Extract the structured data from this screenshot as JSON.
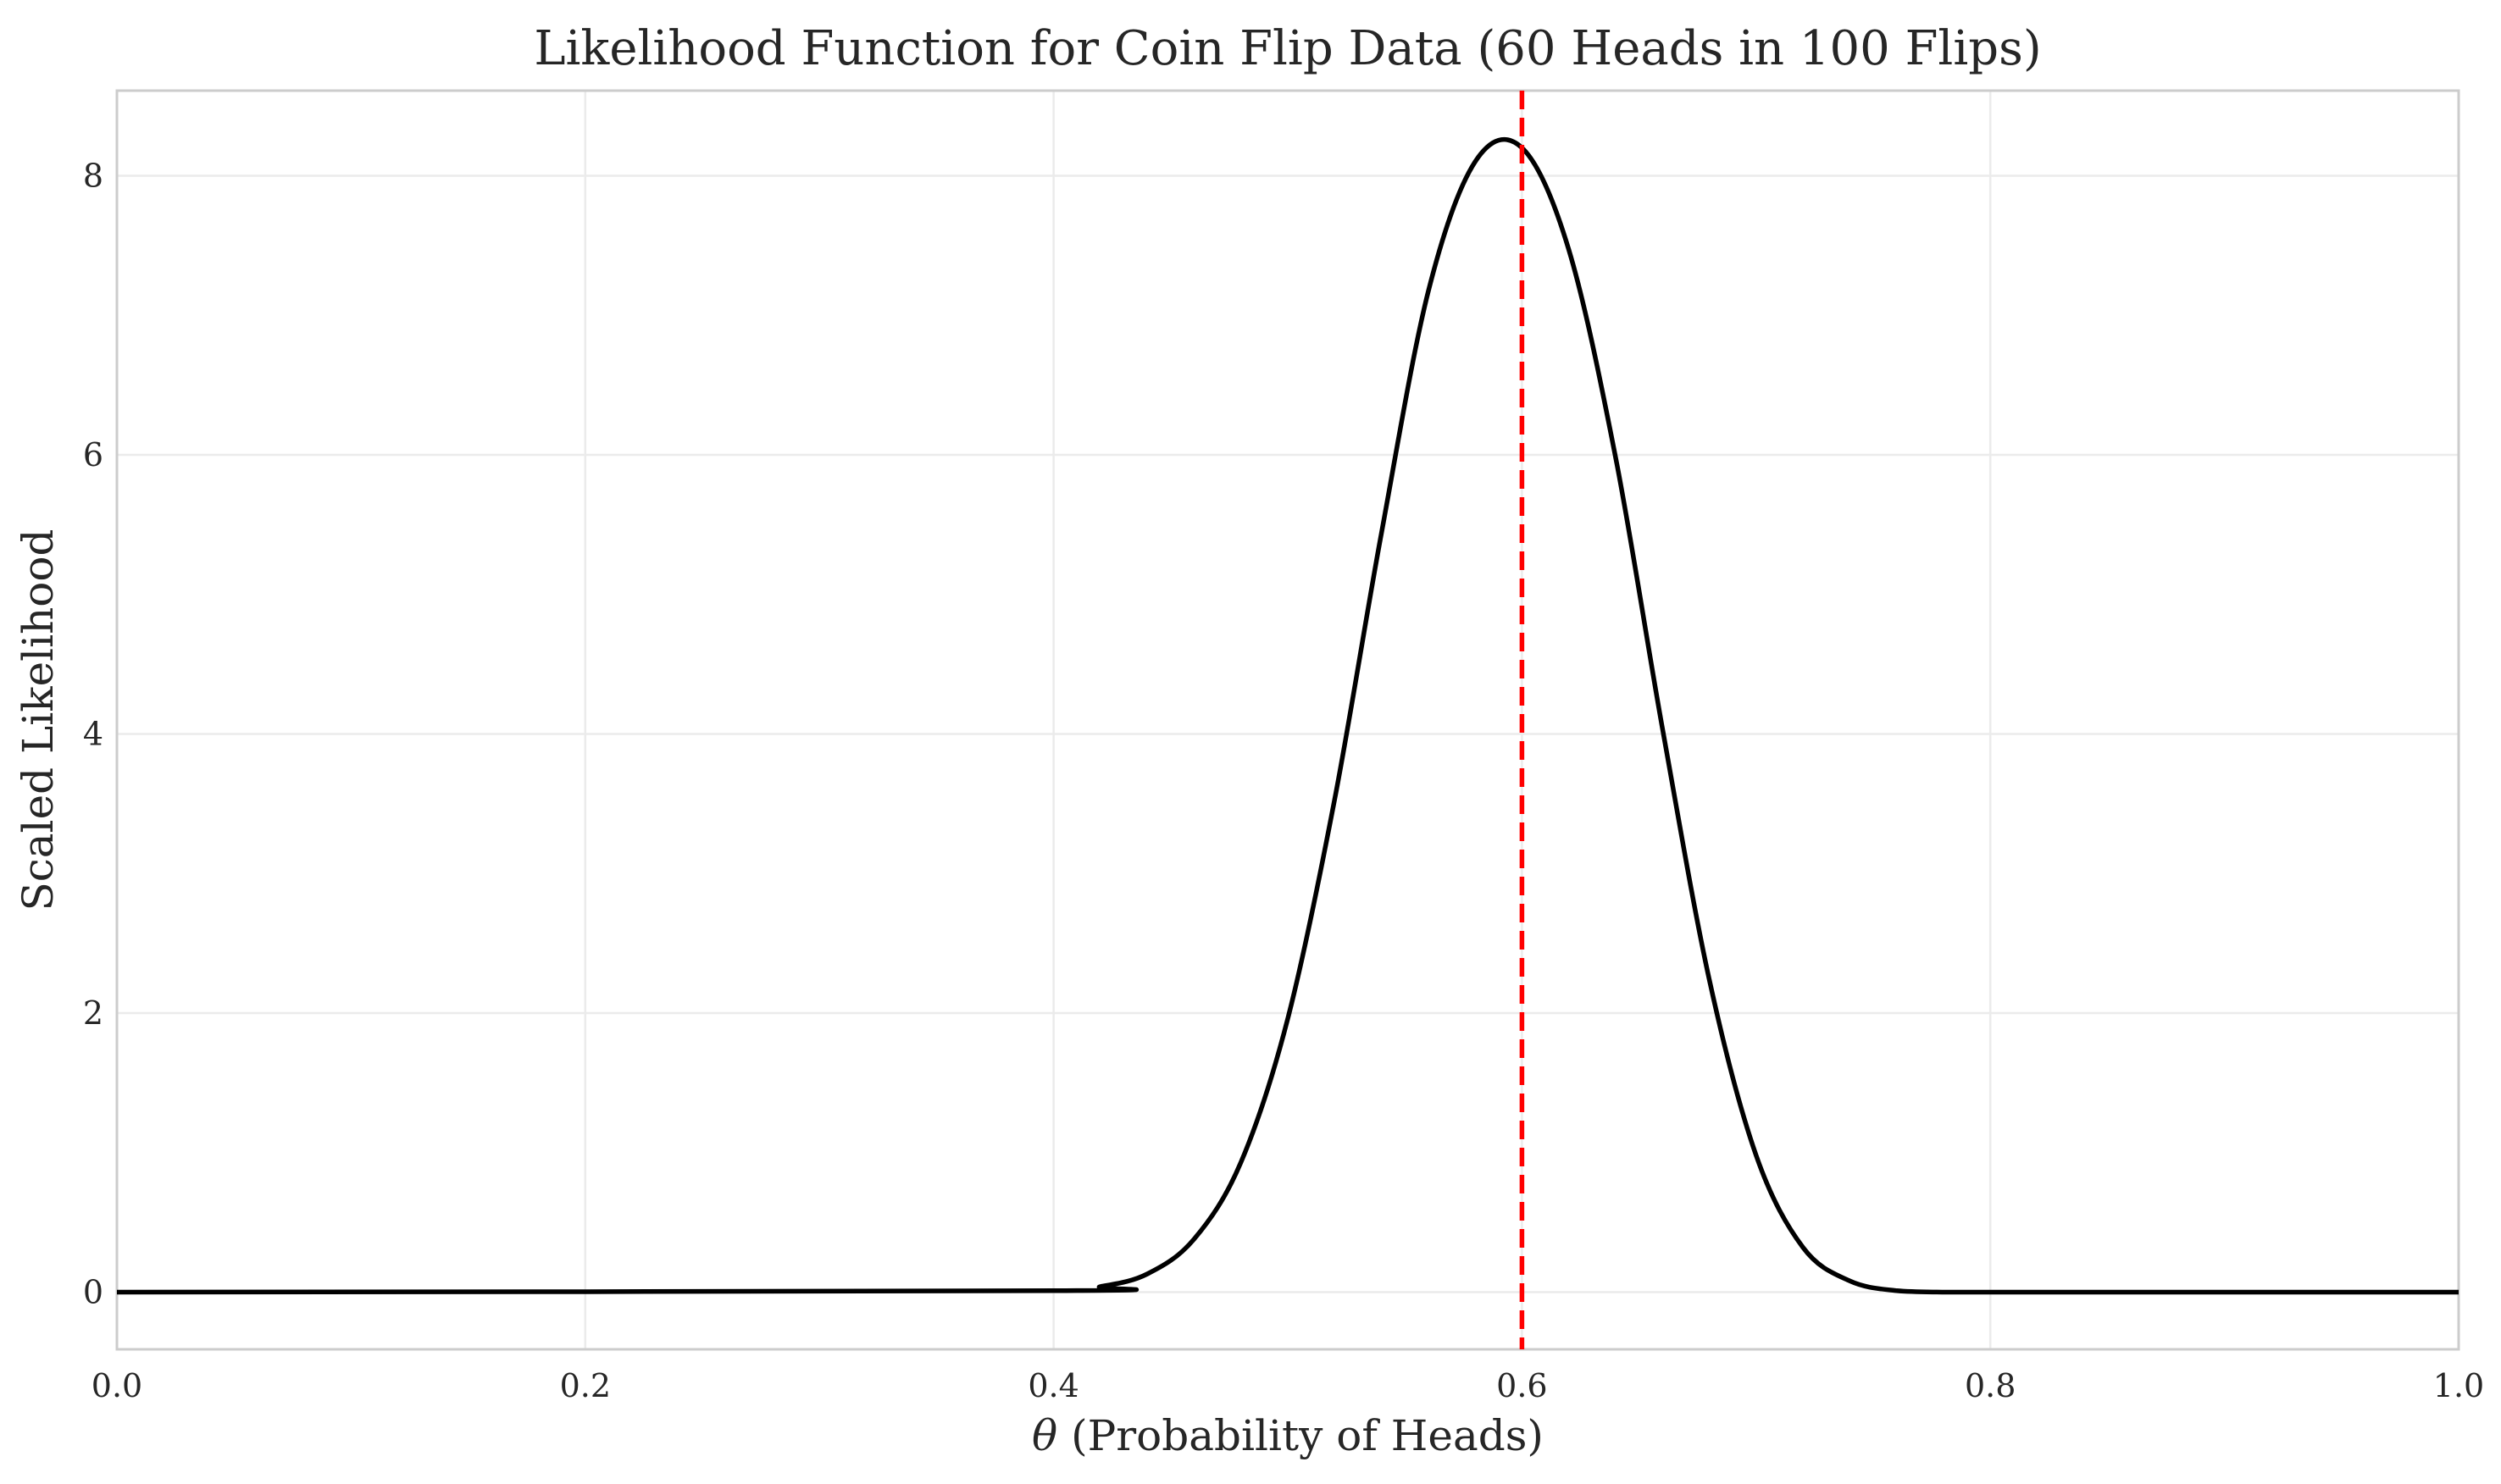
{
  "chart_data": {
    "type": "line",
    "title": "Likelihood Function for Coin Flip Data (60 Heads in 100 Flips)",
    "xlabel_symbol": "θ",
    "xlabel": "(Probability of Heads)",
    "ylabel": "Scaled Likelihood",
    "xlim": [
      0.0,
      1.0
    ],
    "ylim": [
      -0.41,
      8.61
    ],
    "xticks": [
      0.0,
      0.2,
      0.4,
      0.6,
      0.8,
      1.0
    ],
    "xtick_labels": [
      "0.0",
      "0.2",
      "0.4",
      "0.6",
      "0.8",
      "1.0"
    ],
    "yticks": [
      0,
      2,
      4,
      6,
      8
    ],
    "ytick_labels": [
      "0",
      "2",
      "4",
      "6",
      "8"
    ],
    "grid": true,
    "legend": "none",
    "series": [
      {
        "line_color": "#000000",
        "x": [
          0.0,
          0.4,
          0.42,
          0.44,
          0.46,
          0.48,
          0.5,
          0.52,
          0.54,
          0.56,
          0.58,
          0.6,
          0.62,
          0.64,
          0.66,
          0.68,
          0.7,
          0.72,
          0.74,
          0.76,
          0.78,
          0.8,
          1.0
        ],
        "y": [
          0.0,
          0.01,
          0.04,
          0.13,
          0.38,
          0.93,
          1.96,
          3.53,
          5.44,
          7.17,
          8.1,
          8.2,
          7.47,
          5.98,
          4.04,
          2.24,
          0.98,
          0.32,
          0.08,
          0.01,
          0.0,
          0.0,
          0.0
        ]
      }
    ],
    "annotations": [
      {
        "type": "vline",
        "x": 0.6,
        "color": "#ff0000",
        "style": "dashed"
      }
    ]
  }
}
